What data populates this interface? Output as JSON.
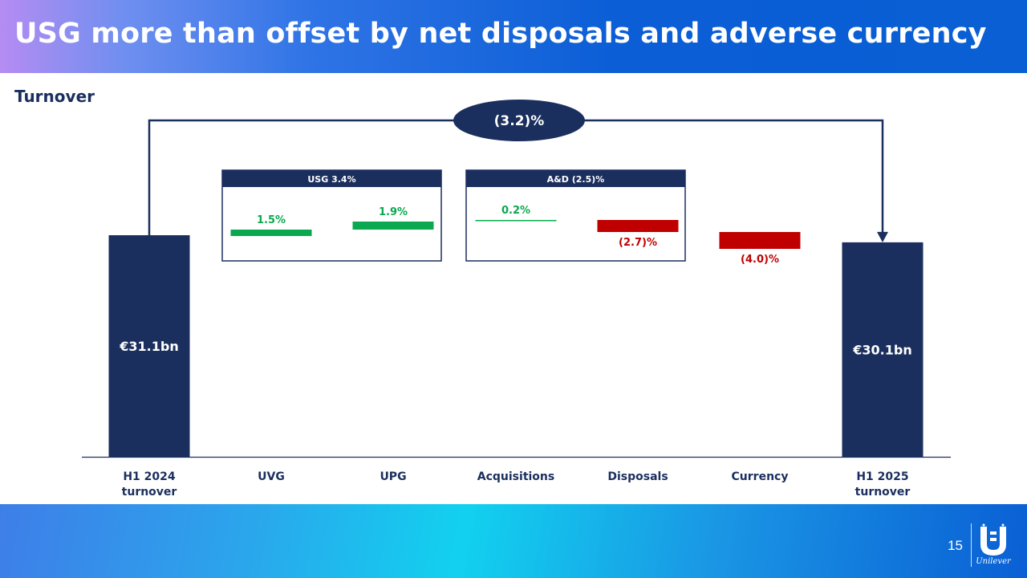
{
  "header": {
    "title": "USG more than offset by net disposals and adverse currency"
  },
  "subtitle": "Turnover",
  "footer": {
    "page_number": "15",
    "logo_text": "Unilever"
  },
  "colors": {
    "navy": "#1b2f5e",
    "green": "#0aa84f",
    "red": "#c00000",
    "header_blue": "#0b5ed6"
  },
  "chart_data": {
    "type": "bar",
    "subtype": "waterfall",
    "categories": [
      "H1 2024\nturnover",
      "UVG",
      "UPG",
      "Acquisitions",
      "Disposals",
      "Currency",
      "H1 2025\nturnover"
    ],
    "steps": [
      {
        "category": "H1 2024\nturnover",
        "kind": "total",
        "value": 31.1,
        "label": "€31.1bn"
      },
      {
        "category": "UVG",
        "kind": "increase",
        "value": 1.5,
        "label": "1.5%"
      },
      {
        "category": "UPG",
        "kind": "increase",
        "value": 1.9,
        "label": "1.9%"
      },
      {
        "category": "Acquisitions",
        "kind": "increase",
        "value": 0.2,
        "label": "0.2%"
      },
      {
        "category": "Disposals",
        "kind": "decrease",
        "value": -2.7,
        "label": "(2.7)%"
      },
      {
        "category": "Currency",
        "kind": "decrease",
        "value": -4.0,
        "label": "(4.0)%"
      },
      {
        "category": "H1 2025\nturnover",
        "kind": "total",
        "value": 30.1,
        "label": "€30.1bn"
      }
    ],
    "groups": [
      {
        "label": "USG 3.4%",
        "members": [
          "UVG",
          "UPG"
        ]
      },
      {
        "label": "A&D (2.5)%",
        "members": [
          "Acquisitions",
          "Disposals"
        ]
      }
    ],
    "overall_change": {
      "label": "(3.2)%",
      "from": "H1 2024\nturnover",
      "to": "H1 2025\nturnover"
    }
  }
}
